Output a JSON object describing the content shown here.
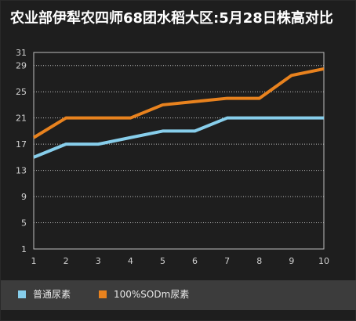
{
  "chart_data": {
    "type": "line",
    "title": "农业部伊犁农四师68团水稻大区:5月28日株高对比",
    "xlabel": "",
    "ylabel": "",
    "x": [
      1,
      2,
      3,
      4,
      5,
      6,
      7,
      8,
      9,
      10
    ],
    "ylim": [
      1,
      31
    ],
    "yticks": [
      1,
      5,
      9,
      13,
      17,
      21,
      25,
      29,
      31
    ],
    "grid": true,
    "legend_position": "bottom",
    "series": [
      {
        "name": "普通尿素",
        "color": "#87ceeb",
        "values": [
          15,
          17,
          17,
          18,
          19,
          19,
          21,
          21,
          21,
          21
        ]
      },
      {
        "name": "100%SODm尿素",
        "color": "#e8821e",
        "values": [
          18,
          21,
          21,
          21,
          23,
          23.5,
          24,
          24,
          27.5,
          28.5
        ]
      }
    ]
  }
}
